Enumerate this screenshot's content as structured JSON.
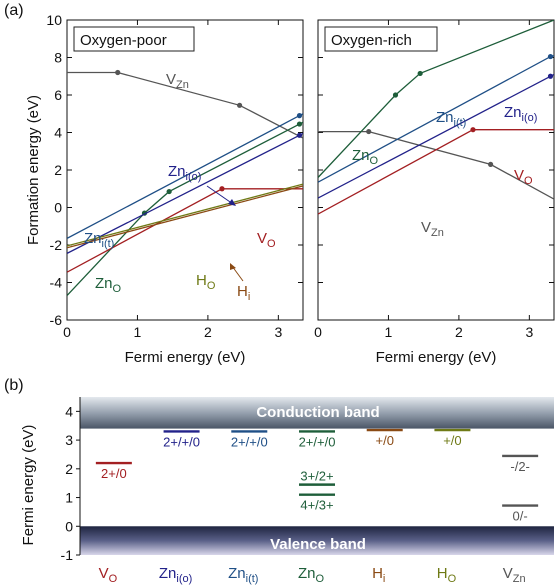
{
  "figure": {
    "panel_a_label": "(a)",
    "panel_b_label": "(b)"
  },
  "colors": {
    "Zn_O": "#1e5e3a",
    "Zn_i_t": "#1f4f86",
    "Zn_i_o": "#22228a",
    "V_O": "#a31f22",
    "H_O": "#6f7a16",
    "H_i": "#8a4a14",
    "V_Zn": "#555555"
  },
  "chart_data": [
    {
      "type": "line",
      "title": "Oxygen-poor",
      "xlabel": "Fermi energy (eV)",
      "ylabel": "Formation energy (eV)",
      "xlim": [
        0,
        3.35
      ],
      "ylim": [
        -6,
        10
      ],
      "xticks": [
        0,
        1,
        2,
        3
      ],
      "yticks": [
        -6,
        -4,
        -2,
        0,
        2,
        4,
        6,
        8,
        10
      ],
      "series": [
        {
          "key": "V_Zn",
          "label": "V",
          "label_sub": "Zn",
          "points": [
            [
              0,
              7.2
            ],
            [
              0.72,
              7.2
            ],
            [
              2.45,
              5.45
            ],
            [
              3.35,
              3.7
            ]
          ],
          "markers": [
            [
              0.72,
              7.2
            ],
            [
              2.45,
              5.45
            ]
          ]
        },
        {
          "key": "Zn_O",
          "label": "Zn",
          "label_sub": "O",
          "points": [
            [
              0,
              -4.7
            ],
            [
              1.1,
              -0.3
            ],
            [
              1.45,
              0.85
            ],
            [
              3.3,
              4.45
            ],
            [
              3.35,
              4.55
            ]
          ],
          "markers": [
            [
              1.1,
              -0.3
            ],
            [
              1.45,
              0.85
            ],
            [
              3.3,
              4.45
            ]
          ]
        },
        {
          "key": "Zn_i_t",
          "label": "Zn",
          "label_sub": "i(t)",
          "points": [
            [
              0,
              -1.65
            ],
            [
              3.3,
              4.9
            ],
            [
              3.35,
              5.0
            ]
          ],
          "markers": [
            [
              3.3,
              4.9
            ]
          ]
        },
        {
          "key": "Zn_i_o",
          "label": "Zn",
          "label_sub": "i(o)",
          "points": [
            [
              0,
              -2.45
            ],
            [
              3.3,
              3.85
            ],
            [
              3.35,
              3.95
            ]
          ],
          "markers": [
            [
              3.3,
              3.85
            ]
          ]
        },
        {
          "key": "V_O",
          "label": "V",
          "label_sub": "O",
          "points": [
            [
              0,
              -3.45
            ],
            [
              2.2,
              1.0
            ],
            [
              3.35,
              1.0
            ]
          ],
          "markers": [
            [
              2.2,
              1.0
            ]
          ]
        },
        {
          "key": "H_i",
          "label": "H",
          "label_sub": "i",
          "points": [
            [
              0,
              -2.15
            ],
            [
              3.35,
              1.15
            ]
          ],
          "markers": []
        },
        {
          "key": "H_O",
          "label": "H",
          "label_sub": "O",
          "points": [
            [
              0,
              -2.05
            ],
            [
              3.35,
              1.25
            ]
          ],
          "markers": []
        }
      ]
    },
    {
      "type": "line",
      "title": "Oxygen-rich",
      "xlabel": "Fermi energy (eV)",
      "ylabel": "",
      "xlim": [
        0,
        3.35
      ],
      "ylim": [
        -6,
        10
      ],
      "xticks": [
        0,
        1,
        2,
        3
      ],
      "series": [
        {
          "key": "V_Zn",
          "label": "V",
          "label_sub": "Zn",
          "points": [
            [
              0,
              4.05
            ],
            [
              0.72,
              4.05
            ],
            [
              2.45,
              2.3
            ],
            [
              3.35,
              0.45
            ]
          ],
          "markers": [
            [
              0.72,
              4.05
            ],
            [
              2.45,
              2.3
            ]
          ]
        },
        {
          "key": "Zn_O",
          "label": "Zn",
          "label_sub": "O",
          "points": [
            [
              0,
              1.6
            ],
            [
              1.1,
              6.0
            ],
            [
              1.45,
              7.15
            ],
            [
              3.35,
              10.0
            ]
          ],
          "markers": [
            [
              1.1,
              6.0
            ],
            [
              1.45,
              7.15
            ]
          ]
        },
        {
          "key": "Zn_i_t",
          "label": "Zn",
          "label_sub": "i(t)",
          "points": [
            [
              0,
              1.35
            ],
            [
              3.3,
              8.05
            ],
            [
              3.35,
              8.1
            ]
          ],
          "markers": [
            [
              3.3,
              8.05
            ]
          ]
        },
        {
          "key": "Zn_i_o",
          "label": "Zn",
          "label_sub": "i(o)",
          "points": [
            [
              0,
              0.5
            ],
            [
              3.3,
              7.0
            ],
            [
              3.35,
              7.1
            ]
          ],
          "markers": [
            [
              3.3,
              7.0
            ]
          ]
        },
        {
          "key": "V_O",
          "label": "V",
          "label_sub": "O",
          "points": [
            [
              0,
              -0.35
            ],
            [
              2.2,
              4.15
            ],
            [
              3.35,
              4.15
            ]
          ],
          "markers": [
            [
              2.2,
              4.15
            ]
          ]
        }
      ]
    },
    {
      "type": "bar",
      "title": "",
      "xlabel": "",
      "ylabel": "Fermi energy (eV)",
      "ylim": [
        -1,
        4.5
      ],
      "yticks": [
        -1,
        0,
        1,
        2,
        3,
        4
      ],
      "conduction_band": {
        "label": "Conduction band",
        "min": 3.4
      },
      "valence_band": {
        "label": "Valence band",
        "max": 0
      },
      "categories": [
        {
          "key": "V_O",
          "label": "V",
          "label_sub": "O",
          "levels": [
            {
              "energy": 2.2,
              "label": "2+/0",
              "label_pos": "below"
            }
          ]
        },
        {
          "key": "Zn_i_o",
          "label": "Zn",
          "label_sub": "i(o)",
          "levels": [
            {
              "energy": 3.3,
              "label": "2+/+/0",
              "label_pos": "below"
            }
          ]
        },
        {
          "key": "Zn_i_t",
          "label": "Zn",
          "label_sub": "i(t)",
          "levels": [
            {
              "energy": 3.3,
              "label": "2+/+/0",
              "label_pos": "below"
            }
          ]
        },
        {
          "key": "Zn_O",
          "label": "Zn",
          "label_sub": "O",
          "levels": [
            {
              "energy": 3.3,
              "label": "2+/+/0",
              "label_pos": "below"
            },
            {
              "energy": 1.45,
              "label": "3+/2+",
              "label_pos": "above"
            },
            {
              "energy": 1.1,
              "label": "4+/3+",
              "label_pos": "below"
            }
          ]
        },
        {
          "key": "H_i",
          "label": "H",
          "label_sub": "i",
          "levels": [
            {
              "energy": 3.35,
              "label": "+/0",
              "label_pos": "below"
            }
          ]
        },
        {
          "key": "H_O",
          "label": "H",
          "label_sub": "O",
          "levels": [
            {
              "energy": 3.35,
              "label": "+/0",
              "label_pos": "below"
            }
          ]
        },
        {
          "key": "V_Zn",
          "label": "V",
          "label_sub": "Zn",
          "levels": [
            {
              "energy": 2.45,
              "label": "-/2-",
              "label_pos": "below"
            },
            {
              "energy": 0.72,
              "label": "0/-",
              "label_pos": "below"
            }
          ]
        }
      ]
    }
  ]
}
